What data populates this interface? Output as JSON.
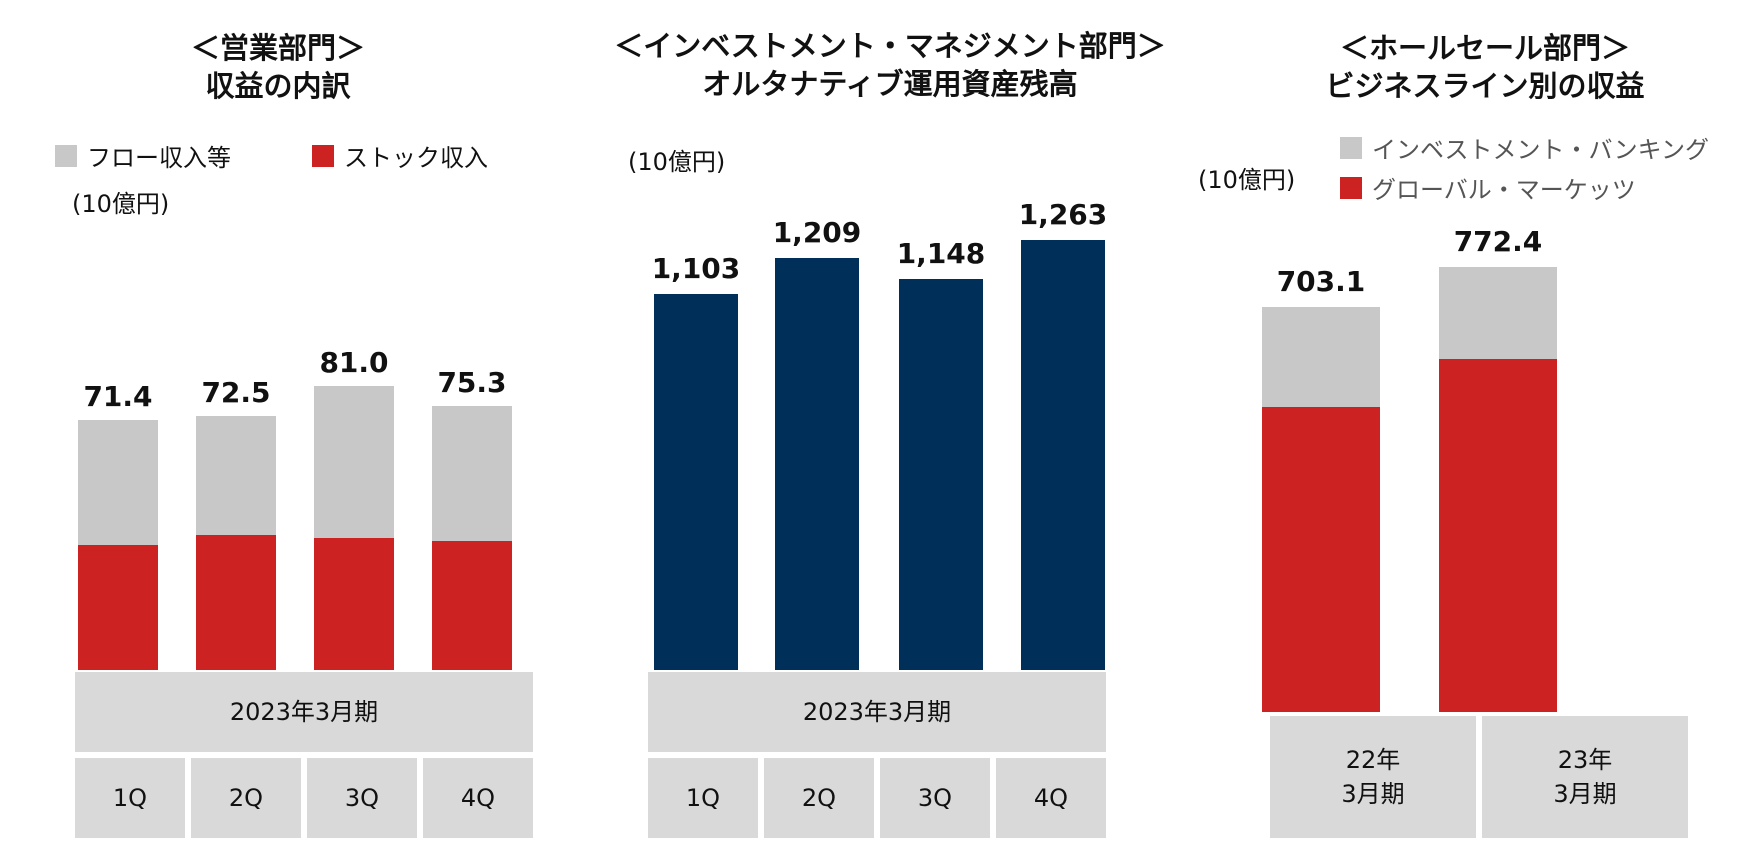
{
  "colors": {
    "gray": "#c8c8c8",
    "red": "#cc2222",
    "navy": "#00305a",
    "cell": "#d9d9d9"
  },
  "chart_data": [
    {
      "type": "bar",
      "stacked": true,
      "title": [
        "＜営業部門＞",
        "収益の内訳"
      ],
      "unit": "(10億円)",
      "period_label": "2023年3月期",
      "categories": [
        "1Q",
        "2Q",
        "3Q",
        "4Q"
      ],
      "series": [
        {
          "name": "ストック収入",
          "color": "#cc2222",
          "values": [
            35.7,
            38.4,
            37.6,
            36.8
          ]
        },
        {
          "name": "フロー収入等",
          "color": "#c8c8c8",
          "values": [
            35.7,
            34.1,
            43.4,
            38.5
          ]
        }
      ],
      "totals": [
        "71.4",
        "72.5",
        "81.0",
        "75.3"
      ],
      "ylim": [
        0,
        81.0
      ]
    },
    {
      "type": "bar",
      "title": [
        "＜インベストメント・マネジメント部門＞",
        "オルタナティブ運用資産残高"
      ],
      "unit": "(10億円)",
      "period_label": "2023年3月期",
      "categories": [
        "1Q",
        "2Q",
        "3Q",
        "4Q"
      ],
      "values": [
        1103,
        1209,
        1148,
        1263
      ],
      "value_labels": [
        "1,103",
        "1,209",
        "1,148",
        "1,263"
      ],
      "ylim": [
        0,
        1263
      ]
    },
    {
      "type": "bar",
      "stacked": true,
      "title": [
        "＜ホールセール部門＞",
        "ビジネスライン別の収益"
      ],
      "unit": "(10億円)",
      "categories": [
        "22年\n3月期",
        "23年\n3月期"
      ],
      "series": [
        {
          "name": "グローバル・マーケッツ",
          "color": "#cc2222",
          "values": [
            530.0,
            612.0
          ]
        },
        {
          "name": "インベストメント・バンキング",
          "color": "#c8c8c8",
          "values": [
            173.1,
            160.4
          ]
        }
      ],
      "totals": [
        "703.1",
        "772.4"
      ],
      "ylim": [
        0,
        772.4
      ]
    }
  ]
}
